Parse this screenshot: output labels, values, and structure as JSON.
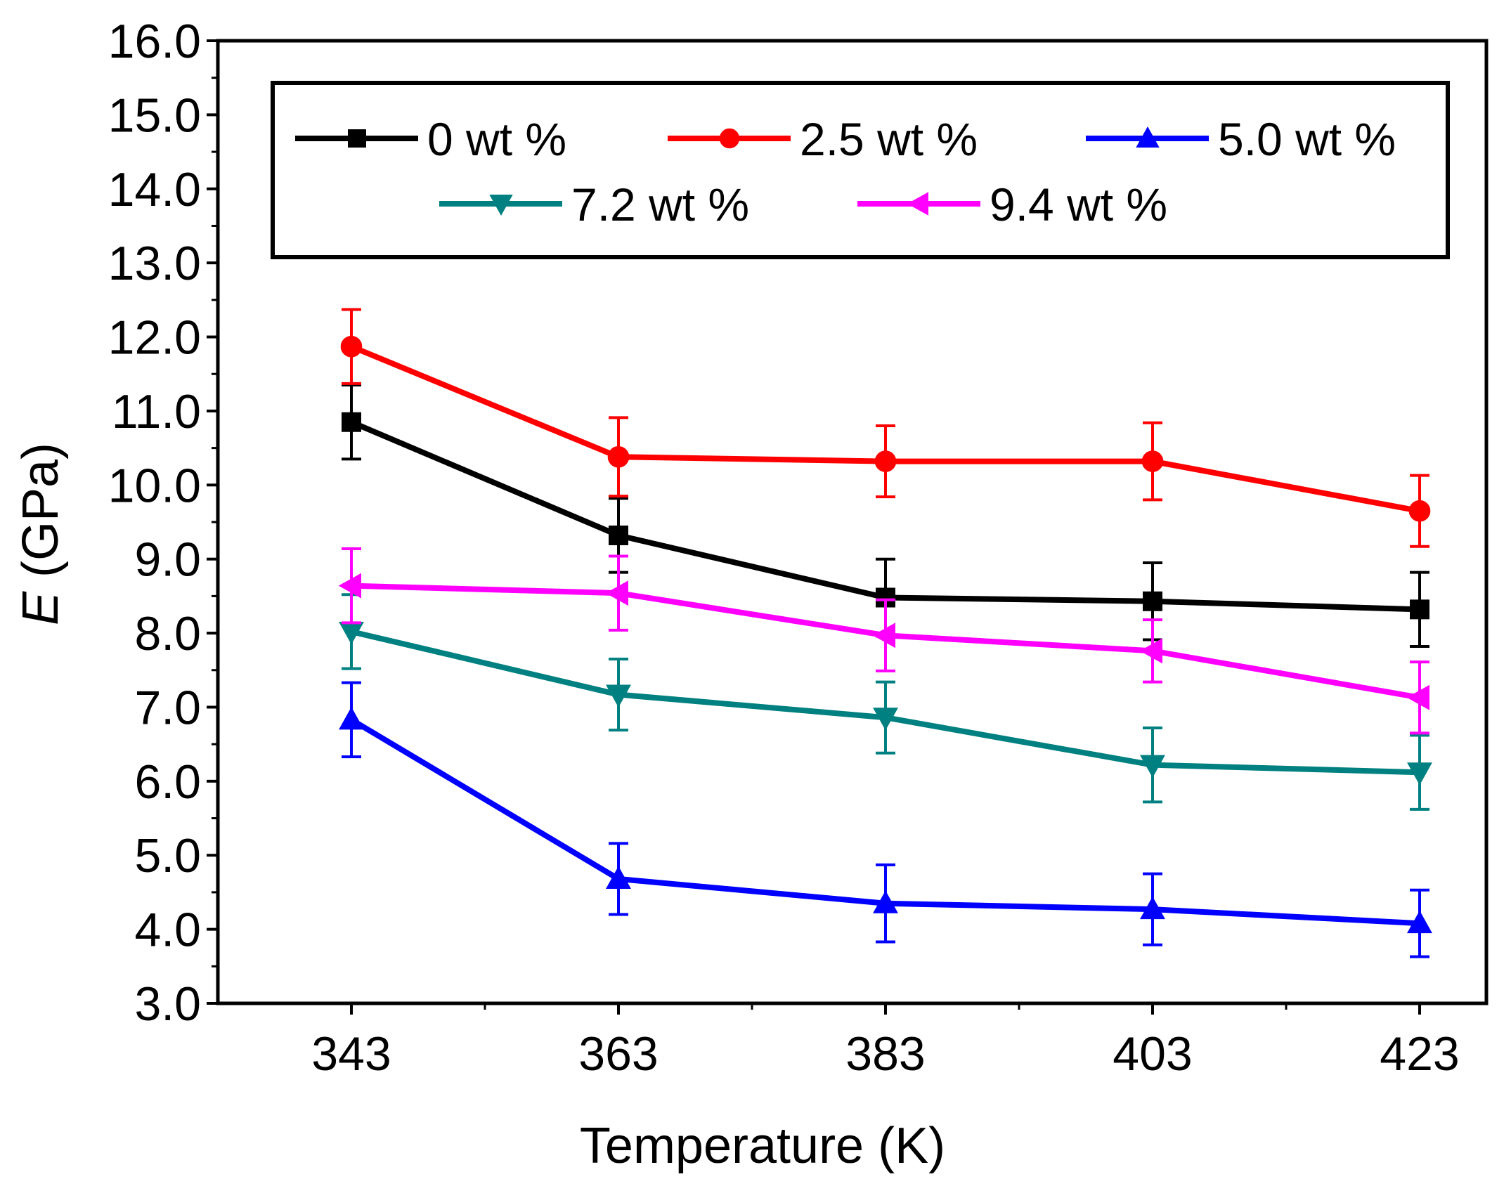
{
  "chart_data": {
    "type": "line",
    "title": "",
    "xlabel": "Temperature (K)",
    "ylabel_symbol": "E",
    "ylabel_unit": " (GPa)",
    "x": [
      343,
      363,
      383,
      403,
      423
    ],
    "x_tick_labels": [
      "343",
      "363",
      "383",
      "403",
      "423"
    ],
    "xlim": [
      333,
      428
    ],
    "ylim": [
      3.0,
      16.0
    ],
    "y_tick_labels": [
      "3.0",
      "4.0",
      "5.0",
      "6.0",
      "7.0",
      "8.0",
      "9.0",
      "10.0",
      "11.0",
      "12.0",
      "13.0",
      "14.0",
      "15.0",
      "16.0"
    ],
    "grid": false,
    "legend_position": "top",
    "error_bars": true,
    "series": [
      {
        "name": "0 wt %",
        "color": "#000000",
        "marker": "square",
        "values": [
          10.85,
          9.32,
          8.48,
          8.43,
          8.32
        ],
        "errors": [
          0.5,
          0.5,
          0.52,
          0.52,
          0.5
        ]
      },
      {
        "name": "2.5 wt %",
        "color": "#ff0000",
        "marker": "circle",
        "values": [
          11.87,
          10.38,
          10.32,
          10.32,
          9.65
        ],
        "errors": [
          0.5,
          0.53,
          0.48,
          0.52,
          0.48
        ]
      },
      {
        "name": "5.0 wt %",
        "color": "#0000ff",
        "marker": "triangle-up",
        "values": [
          6.83,
          4.68,
          4.35,
          4.27,
          4.08
        ],
        "errors": [
          0.5,
          0.48,
          0.52,
          0.48,
          0.45
        ]
      },
      {
        "name": "7.2 wt %",
        "color": "#008080",
        "marker": "triangle-down",
        "values": [
          8.02,
          7.17,
          6.86,
          6.22,
          6.12
        ],
        "errors": [
          0.5,
          0.48,
          0.48,
          0.5,
          0.5
        ]
      },
      {
        "name": "9.4 wt %",
        "color": "#ff00ff",
        "marker": "triangle-left",
        "values": [
          8.64,
          8.54,
          7.97,
          7.76,
          7.13
        ],
        "errors": [
          0.5,
          0.5,
          0.48,
          0.42,
          0.48
        ]
      }
    ]
  }
}
